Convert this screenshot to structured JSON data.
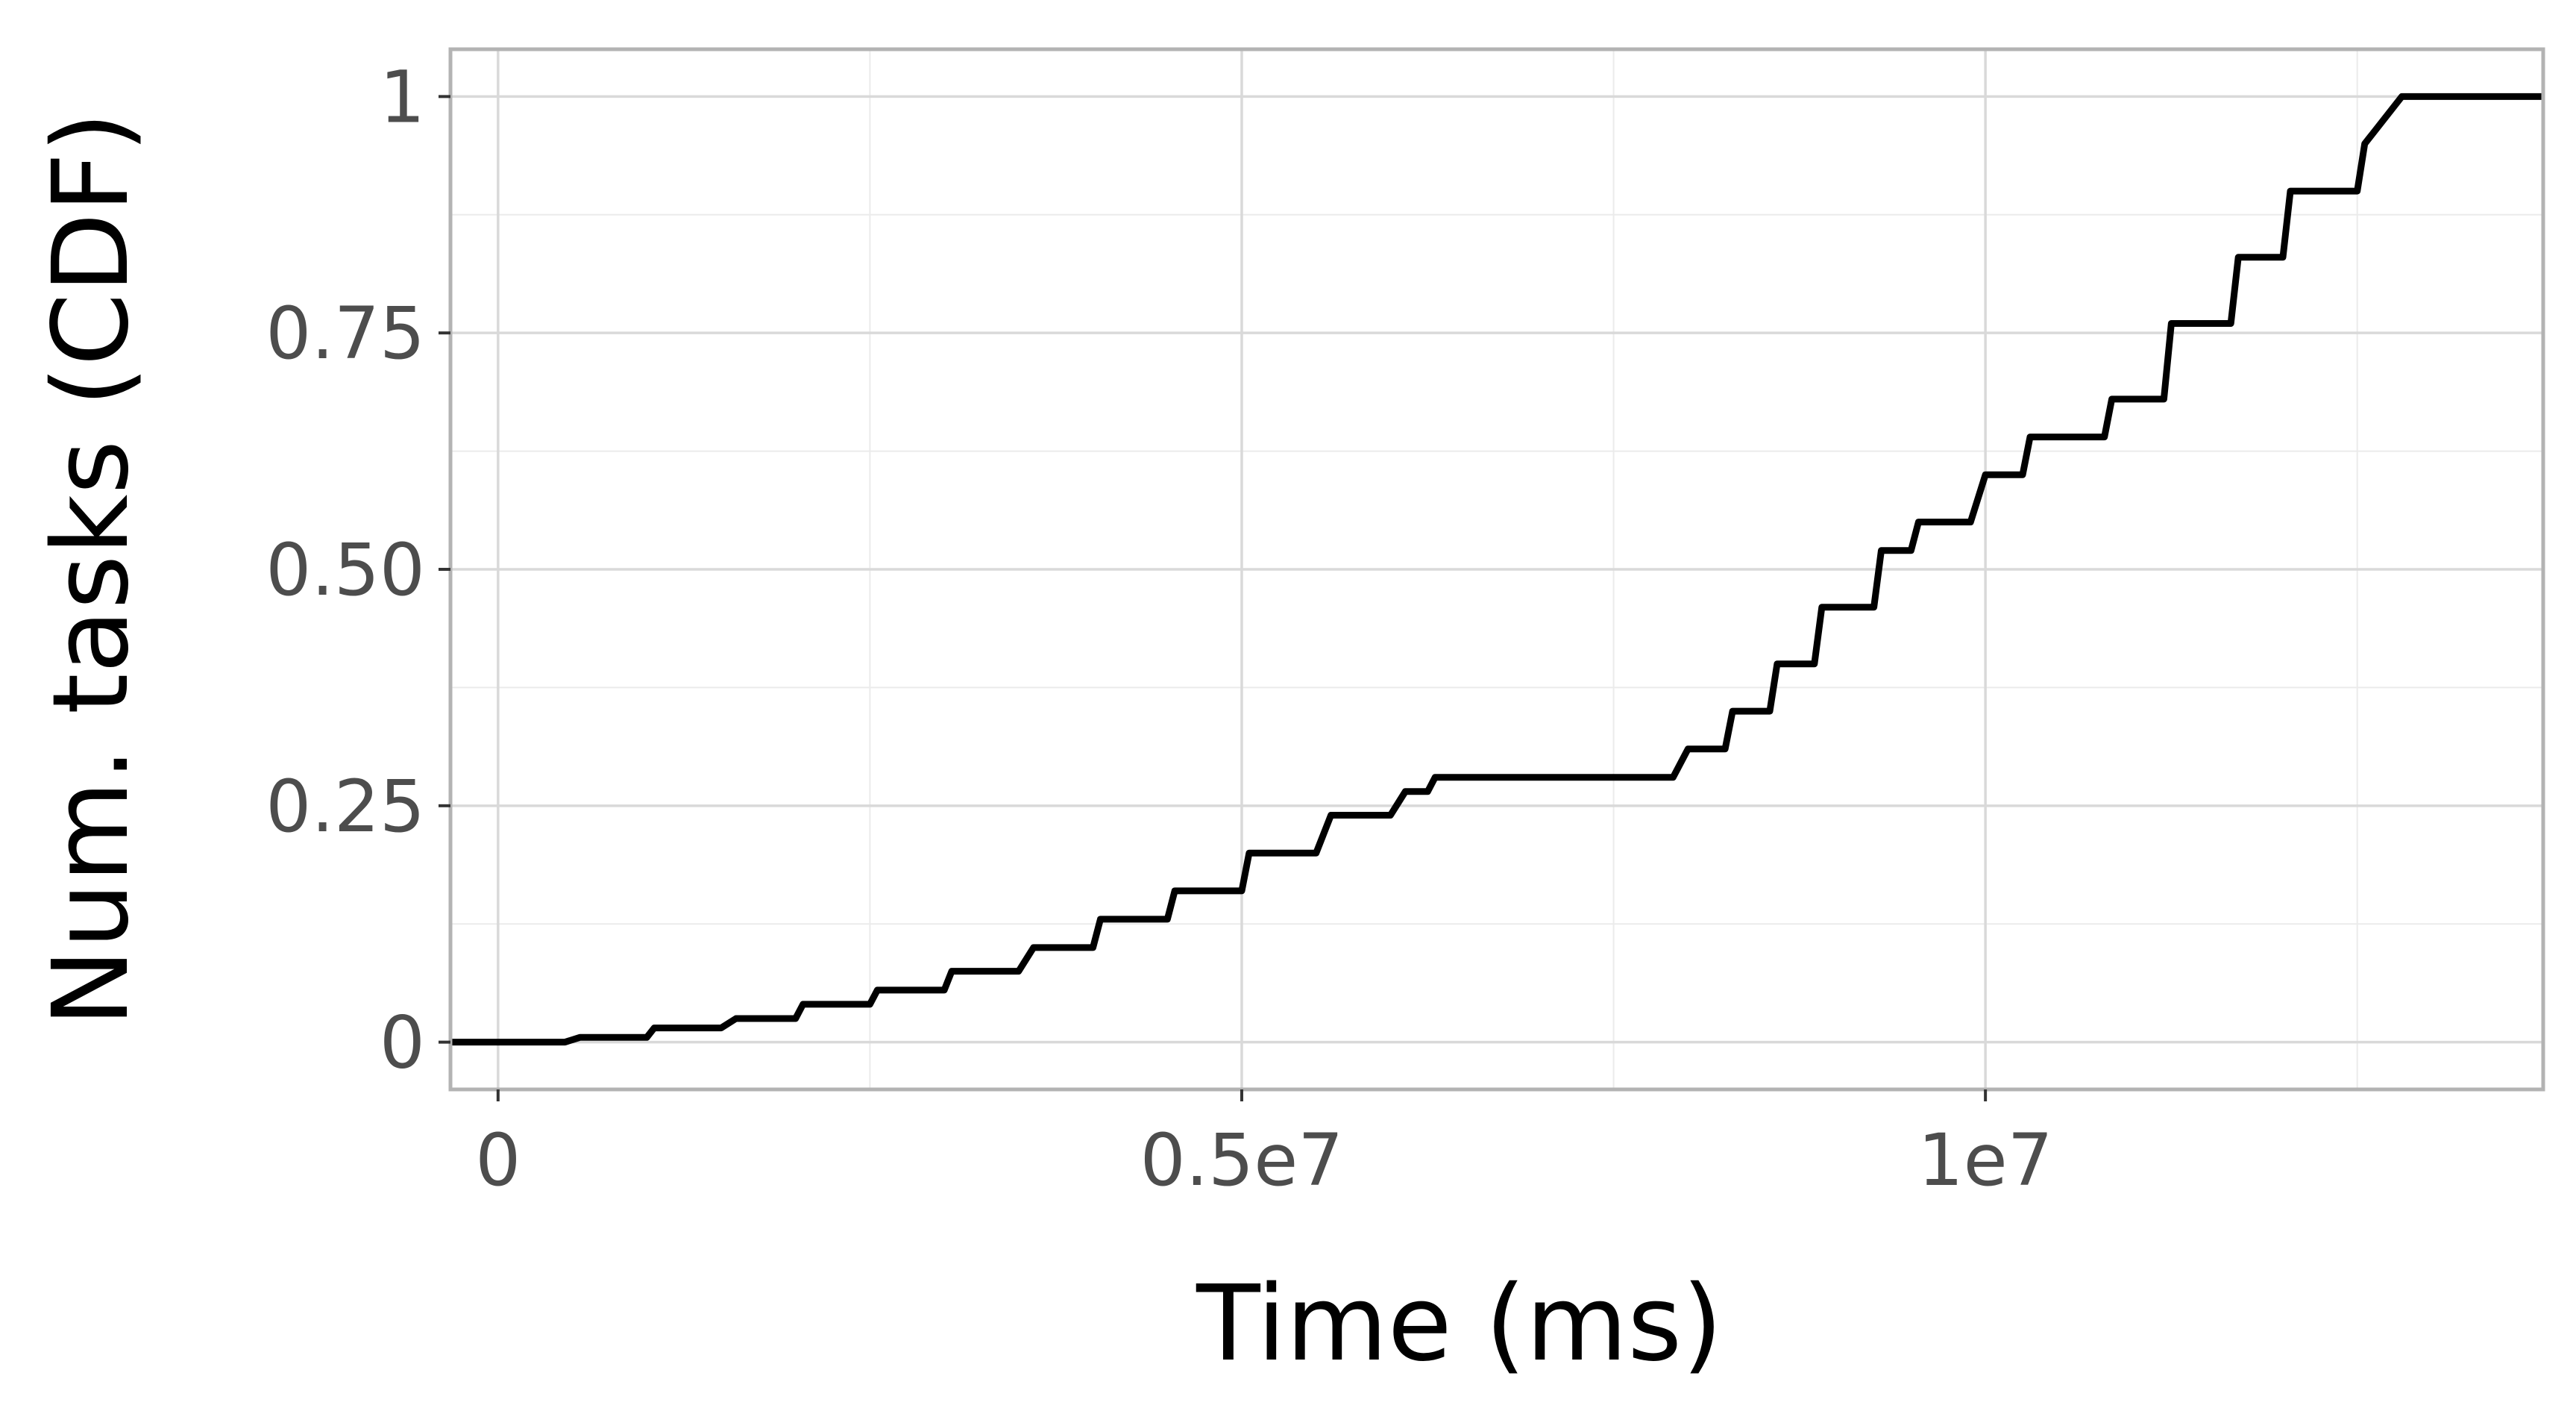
{
  "chart_data": {
    "type": "line",
    "subtype": "step-cdf",
    "title": "",
    "xlabel": "Time (ms)",
    "ylabel": "Num. tasks (CDF)",
    "xlim": [
      -320000,
      13750000
    ],
    "ylim": [
      -0.05,
      1.05
    ],
    "grid": true,
    "legend": "none",
    "x_ticks": [
      {
        "value": 0,
        "label": "0"
      },
      {
        "value": 5000000,
        "label": "0.5e7"
      },
      {
        "value": 10000000,
        "label": "1e7"
      }
    ],
    "y_ticks": [
      {
        "value": 0,
        "label": "0"
      },
      {
        "value": 0.25,
        "label": "0.25"
      },
      {
        "value": 0.5,
        "label": "0.50"
      },
      {
        "value": 0.75,
        "label": "0.75"
      },
      {
        "value": 1,
        "label": "1"
      }
    ],
    "x_minor_grid": [
      2500000,
      7500000,
      12500000
    ],
    "y_minor_grid": [
      0.125,
      0.375,
      0.625,
      0.875
    ],
    "series": [
      {
        "name": "CDF",
        "color": "#000000",
        "x": [
          -320000,
          450000,
          550000,
          1000000,
          1050000,
          1500000,
          1600000,
          2000000,
          2050000,
          2500000,
          2550000,
          3000000,
          3050000,
          3500000,
          3600000,
          4000000,
          4050000,
          4500000,
          4550000,
          5000000,
          5050000,
          5500000,
          5600000,
          6000000,
          6100000,
          6250000,
          6300000,
          7900000,
          8000000,
          8250000,
          8300000,
          8550000,
          8600000,
          8850000,
          8900000,
          9250000,
          9300000,
          9500000,
          9550000,
          9900000,
          10000000,
          10250000,
          10300000,
          10800000,
          10850000,
          11200000,
          11250000,
          11650000,
          11700000,
          12000000,
          12050000,
          12500000,
          12550000,
          12800000,
          13750000
        ],
        "y": [
          0,
          0,
          0.005,
          0.005,
          0.015,
          0.015,
          0.025,
          0.025,
          0.04,
          0.04,
          0.055,
          0.055,
          0.075,
          0.075,
          0.1,
          0.1,
          0.13,
          0.13,
          0.16,
          0.16,
          0.2,
          0.2,
          0.24,
          0.24,
          0.265,
          0.265,
          0.28,
          0.28,
          0.31,
          0.31,
          0.35,
          0.35,
          0.4,
          0.4,
          0.46,
          0.46,
          0.52,
          0.52,
          0.55,
          0.55,
          0.6,
          0.6,
          0.64,
          0.64,
          0.68,
          0.68,
          0.76,
          0.76,
          0.83,
          0.83,
          0.9,
          0.9,
          0.95,
          1.0,
          1.0
        ]
      }
    ]
  }
}
